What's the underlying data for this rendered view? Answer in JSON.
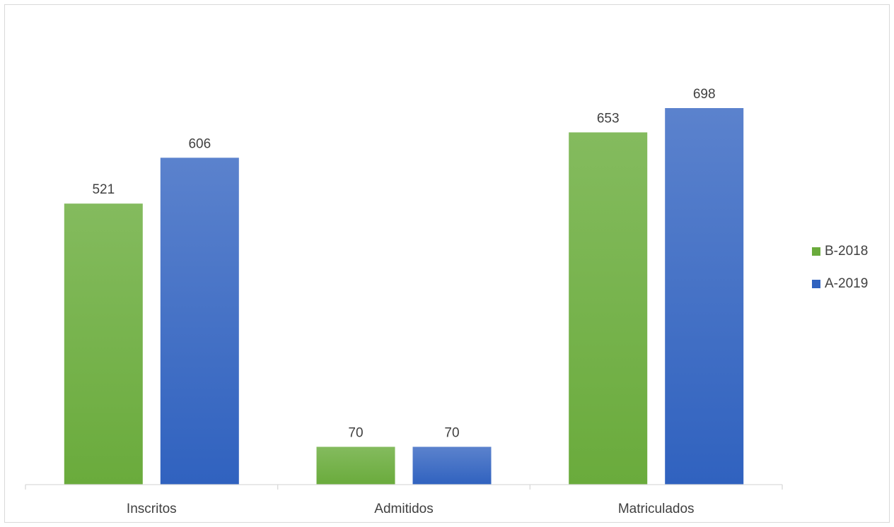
{
  "chart_data": {
    "type": "bar",
    "categories": [
      "Inscritos",
      "Admitidos",
      "Matriculados"
    ],
    "series": [
      {
        "name": "B-2018",
        "values": [
          521,
          70,
          653
        ],
        "color": "#6aab3c",
        "color_top": "#84bb5e"
      },
      {
        "name": "A-2019",
        "values": [
          606,
          70,
          698
        ],
        "color": "#3062bf",
        "color_top": "#5b82cd"
      }
    ],
    "title": "",
    "xlabel": "",
    "ylabel": "",
    "ylim": [
      0,
      750
    ],
    "grid": false,
    "legend_position": "right"
  }
}
